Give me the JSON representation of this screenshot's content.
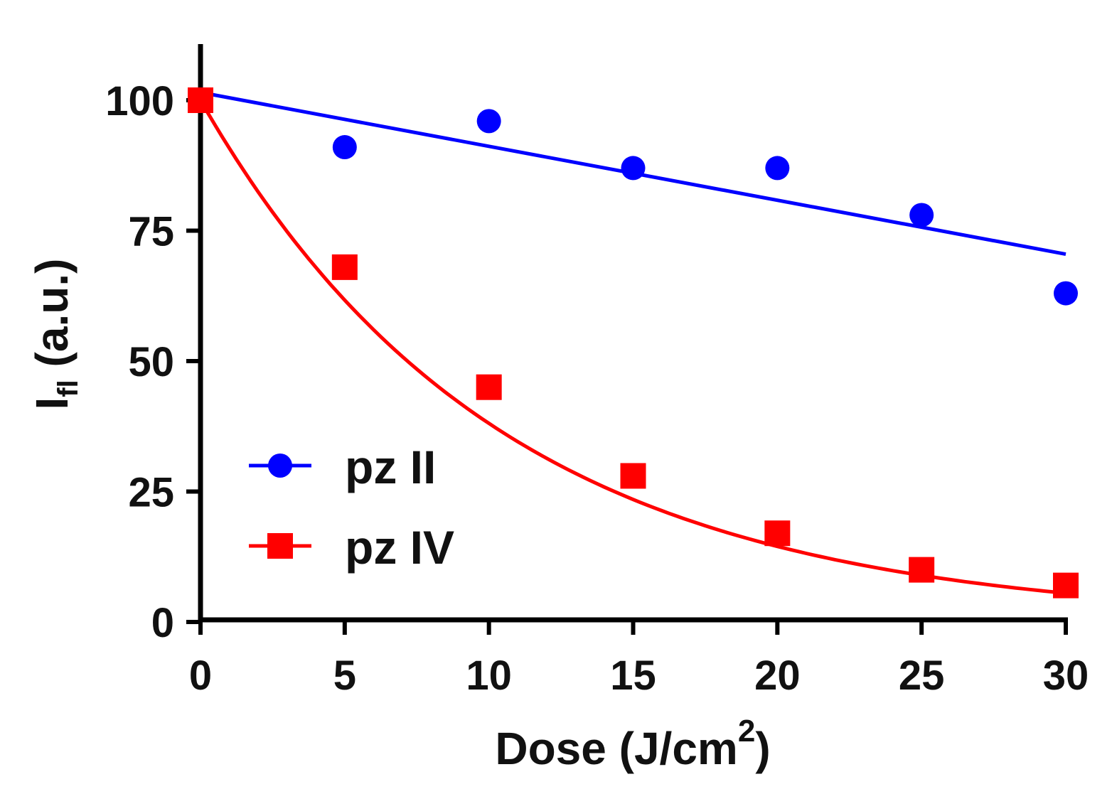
{
  "chart_data": {
    "type": "scatter",
    "xlabel": "Dose (J/cm2)",
    "xlabel_parts": {
      "main": "Dose (J/cm",
      "sup": "2",
      "close": ")"
    },
    "ylabel": "Ifl (a.u.)",
    "ylabel_parts": {
      "main": "I",
      "sub": "fl",
      "rest": " (a.u.)"
    },
    "xlim": [
      0,
      30
    ],
    "ylim": [
      0,
      110
    ],
    "xticks": [
      "0",
      "5",
      "10",
      "15",
      "20",
      "25",
      "30"
    ],
    "yticks": [
      "0",
      "25",
      "50",
      "75",
      "100"
    ],
    "grid": false,
    "legend_position": "bottom-left",
    "series": [
      {
        "name": "pz II",
        "color": "#0000ff",
        "marker": "circle",
        "x": [
          0,
          5,
          10,
          15,
          20,
          25,
          30
        ],
        "y": [
          100,
          91,
          96,
          87,
          87,
          78,
          63
        ],
        "fit": {
          "type": "linear",
          "x": [
            0,
            30
          ],
          "y": [
            101.5,
            70.5
          ]
        }
      },
      {
        "name": "pz IV",
        "color": "#ff0000",
        "marker": "square",
        "x": [
          0,
          5,
          10,
          15,
          20,
          25,
          30
        ],
        "y": [
          100,
          68,
          45,
          28,
          17,
          10,
          7
        ],
        "fit": {
          "type": "exponential-decay",
          "y0": 100,
          "k": 0.0966
        }
      }
    ]
  }
}
